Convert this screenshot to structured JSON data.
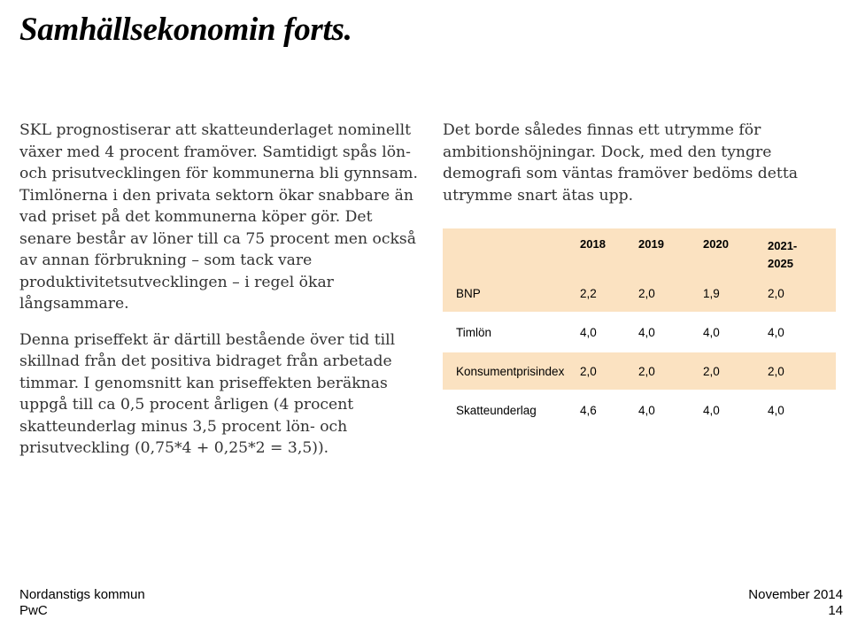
{
  "title": "Samhällsekonomin forts.",
  "left_column": {
    "paragraphs": [
      "SKL prognostiserar att skatteunderlaget nominellt växer med 4 procent framöver. Samtidigt spås lön- och prisutvecklingen för kommunerna bli gynnsam. Timlönerna i den privata sektorn ökar snabbare än vad priset på det kommunerna köper gör. Det senare består av löner till ca 75 procent men också av annan förbrukning – som tack vare produktivitetsutvecklingen – i regel ökar långsammare.",
      "Denna priseffekt är därtill bestående över tid till skillnad från det positiva bidraget från arbetade timmar. I genomsnitt kan priseffekten beräknas uppgå till ca 0,5 procent årligen (4 procent skatteunderlag minus 3,5 procent lön- och prisutveckling (0,75*4 + 0,25*2 = 3,5))."
    ]
  },
  "right_column": {
    "paragraph": "Det borde således finnas ett utrymme för ambitionshöjningar. Dock, med den tyngre demografi som väntas framöver bedöms detta utrymme snart ätas upp."
  },
  "table": {
    "headers": [
      "",
      "2018",
      "2019",
      "2020",
      "2021-\n2025"
    ],
    "rows": [
      {
        "label": "BNP",
        "values": [
          "2,2",
          "2,0",
          "1,9",
          "2,0"
        ]
      },
      {
        "label": "Timlön",
        "values": [
          "4,0",
          "4,0",
          "4,0",
          "4,0"
        ]
      },
      {
        "label": "Konsumentprisindex",
        "values": [
          "2,0",
          "2,0",
          "2,0",
          "2,0"
        ]
      },
      {
        "label": "Skatteunderlag",
        "values": [
          "4,6",
          "4,0",
          "4,0",
          "4,0"
        ]
      }
    ],
    "accent_color": "#fbe2c1"
  },
  "footer": {
    "org": "Nordanstigs kommun",
    "company": "PwC",
    "date": "November 2014",
    "page": "14"
  }
}
